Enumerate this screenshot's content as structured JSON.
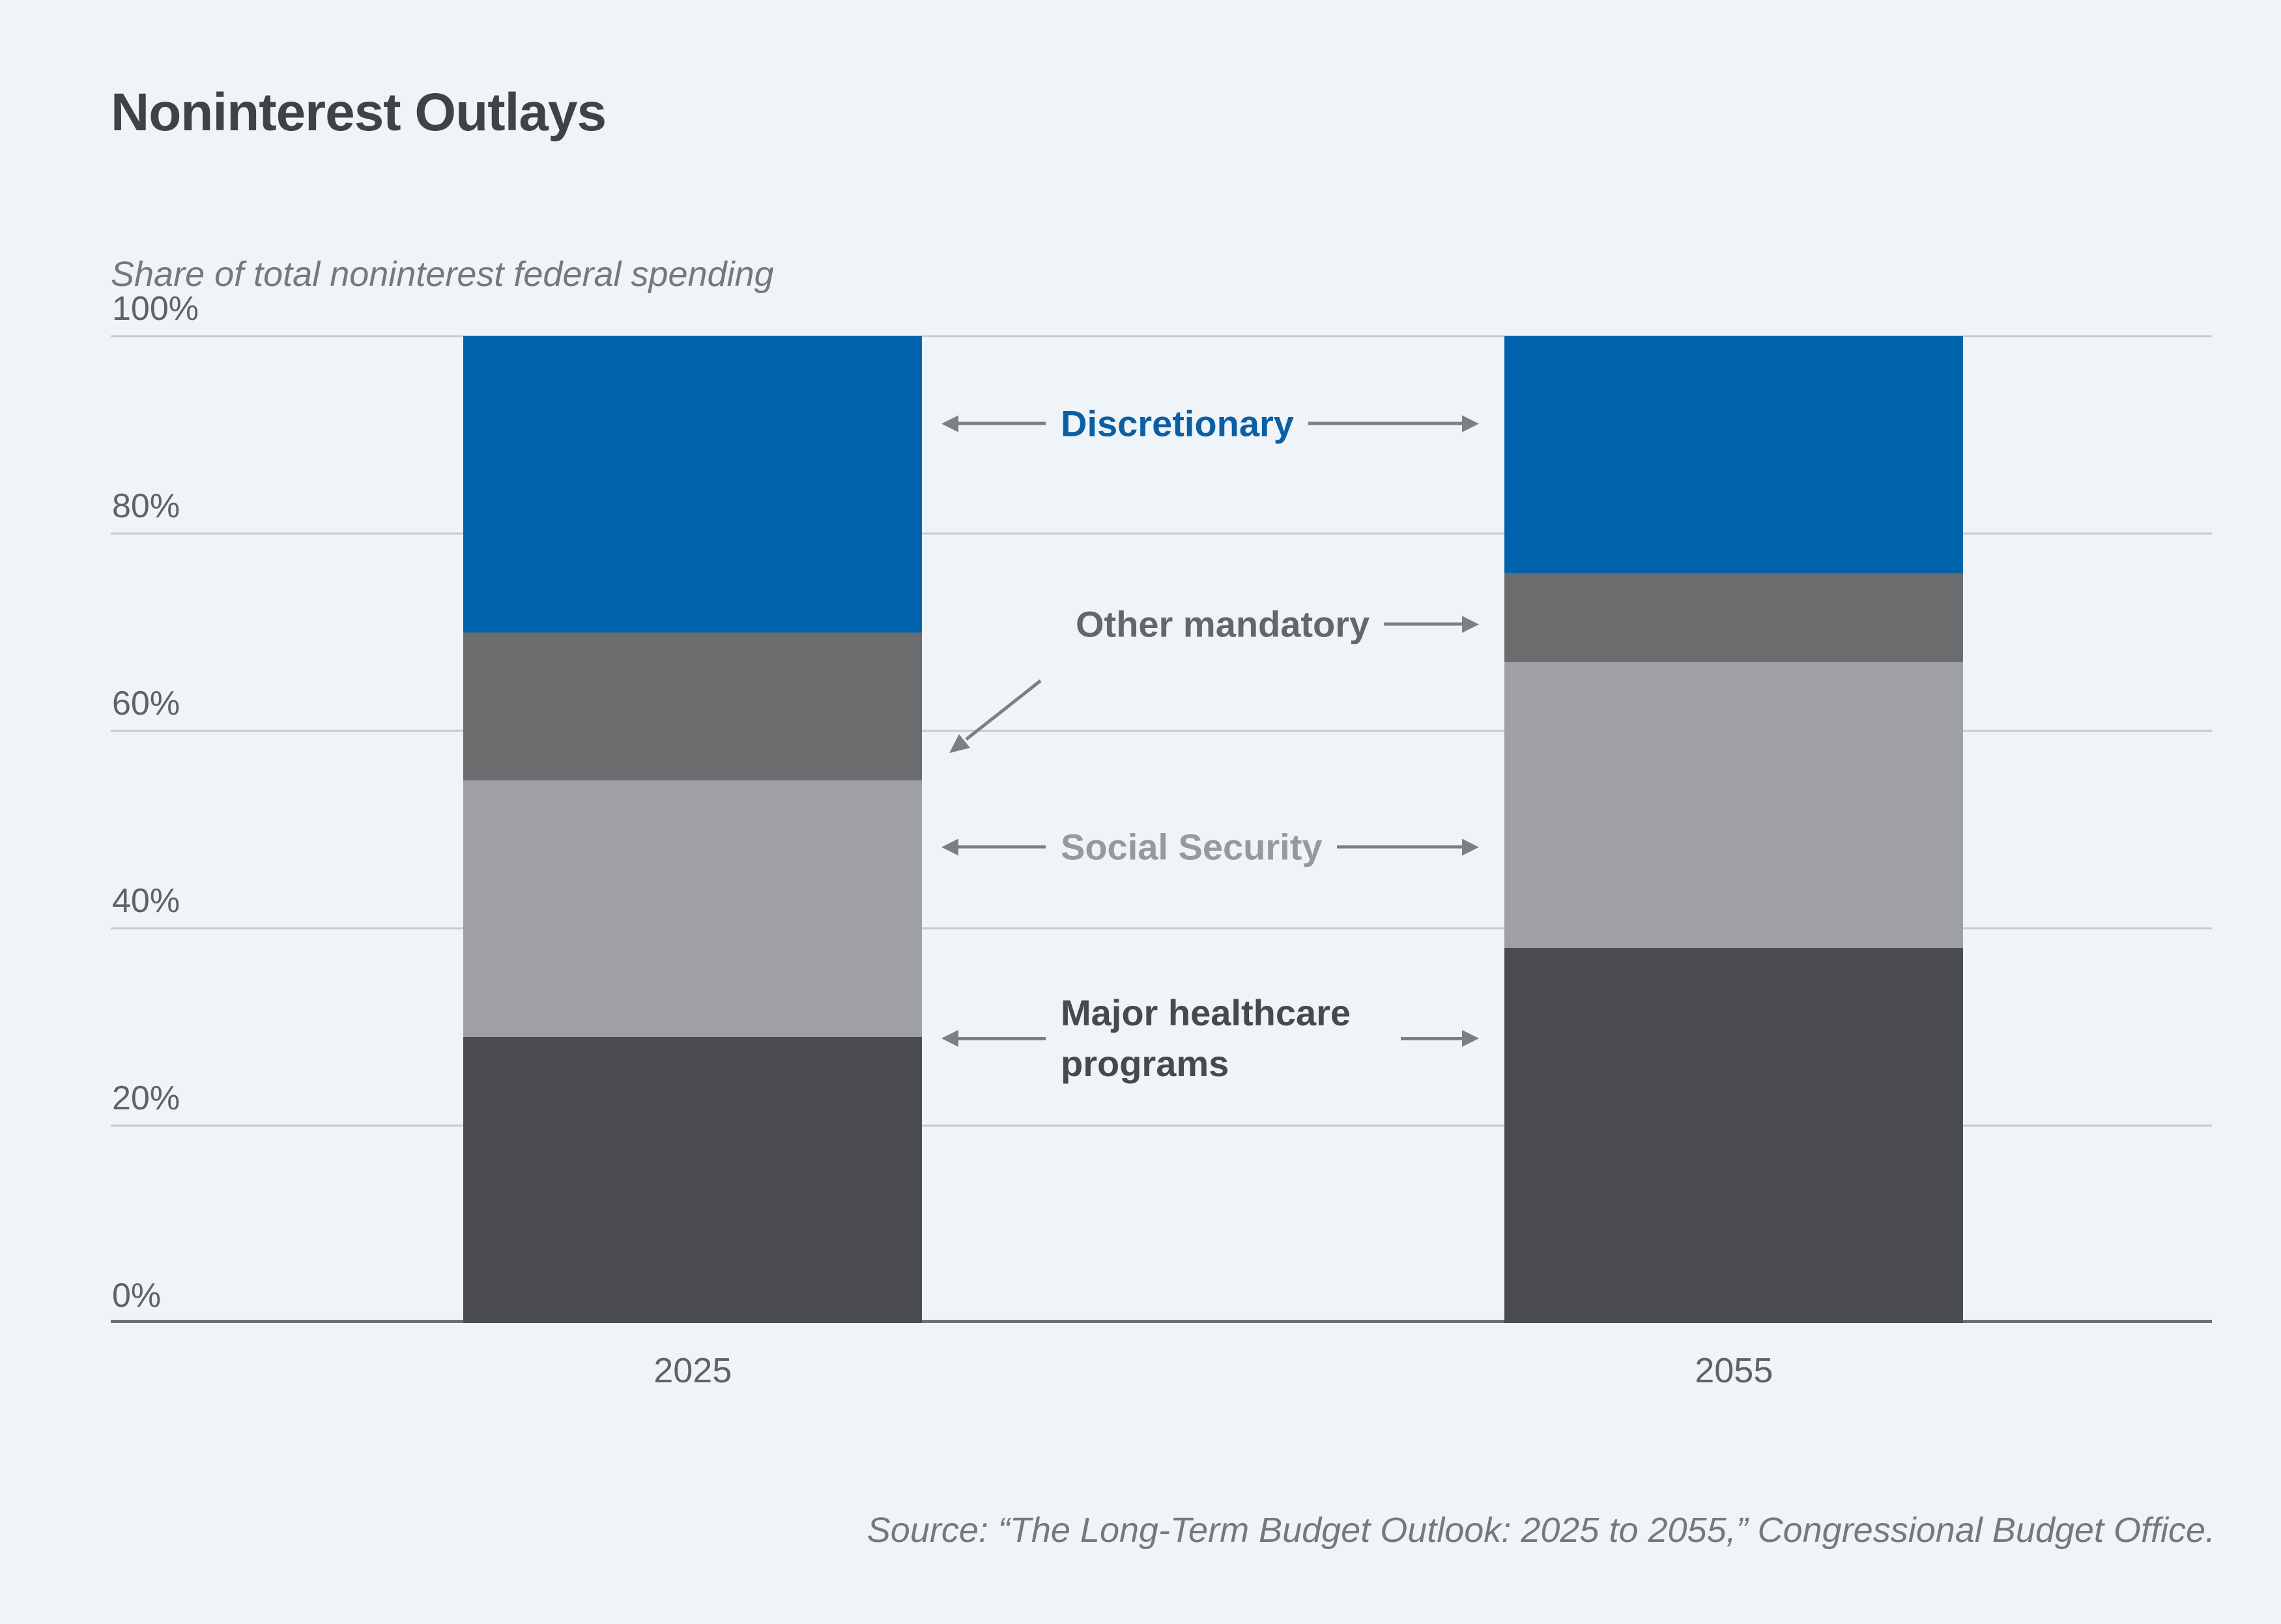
{
  "theme": {
    "bg": "#EFF4F9",
    "grid": "#C7CBCF",
    "axis": "#6E7174",
    "arrow": "#7C8084",
    "title": "#3F4347",
    "tick": "#5F6367",
    "muted": "#75787C"
  },
  "header": {
    "title": "Noninterest Outlays",
    "subtitle": "Share of total noninterest federal spending"
  },
  "chart_data": {
    "type": "bar",
    "stacked": true,
    "units": "percent of total noninterest federal spending",
    "categories": [
      "2025",
      "2055"
    ],
    "series": [
      {
        "name": "Discretionary",
        "values": [
          30,
          24
        ],
        "color": "#0063AC",
        "label_color": "#0B5FA5"
      },
      {
        "name": "Other mandatory",
        "values": [
          15,
          9
        ],
        "color": "#6A6C6E",
        "label_color": "#64676A"
      },
      {
        "name": "Social Security",
        "values": [
          26,
          29
        ],
        "color": "#9EA0A3",
        "label_color": "#97999D"
      },
      {
        "name": "Major healthcare programs",
        "values": [
          29,
          38
        ],
        "color": "#4A4C4F",
        "label_color": "#474A4D"
      }
    ],
    "title": "Noninterest Outlays",
    "xlabel": "",
    "ylabel": "Share of total noninterest federal spending",
    "ylim": [
      0,
      100
    ],
    "yticks": [
      "0%",
      "20%",
      "40%",
      "60%",
      "80%",
      "100%"
    ],
    "grid": true,
    "legend_position": "center-between-bars"
  },
  "source": {
    "text": "Source: “The Long-Term Budget Outlook: 2025 to 2055,” Congressional Budget Office."
  }
}
